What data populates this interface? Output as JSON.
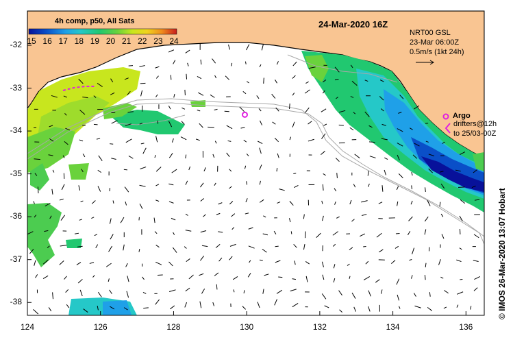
{
  "colorbar": {
    "title": "4h comp, p50, All Sats",
    "ticks": [
      "15",
      "16",
      "17",
      "18",
      "19",
      "20",
      "21",
      "22",
      "23",
      "24"
    ],
    "colors": [
      "#08119a",
      "#0a4fc8",
      "#1fa0e8",
      "#25c8c8",
      "#21c870",
      "#6ad23c",
      "#c8e61e",
      "#f0d21e",
      "#f08c1e",
      "#c81e1e"
    ]
  },
  "date_title": "24-Mar-2020 16Z",
  "info": {
    "line1": "NRT00 GSL",
    "line2": "23-Mar 06:00Z",
    "line3": "0.5m/s (1kt 24h)"
  },
  "argo": {
    "label": "Argo"
  },
  "drifters": {
    "line1": "drifters@12h",
    "line2": "to 25/03-00Z"
  },
  "credit": "© IMOS 26-Mar-2020 13:07 Hobart",
  "axes": {
    "x_ticks": [
      "124",
      "126",
      "128",
      "130",
      "132",
      "134",
      "136"
    ],
    "y_ticks": [
      "-32",
      "-33",
      "-34",
      "-35",
      "-36",
      "-37",
      "-38"
    ],
    "lon_range": [
      124,
      136.5
    ],
    "lat_range": [
      -38.3,
      -31.2
    ]
  },
  "colors": {
    "land": "#f9c592",
    "sea_unobserved": "#ffffff",
    "argo": "#e020e0",
    "isobath": "#a8a8a8"
  },
  "argo_floats": [
    {
      "lon": 129.95,
      "lat": -33.62
    }
  ]
}
